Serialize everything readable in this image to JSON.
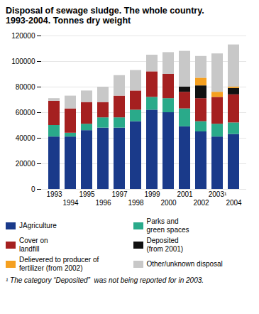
{
  "chart_data": {
    "type": "bar",
    "stacked": true,
    "title": "Disposal of sewage sludge. The whole country.\n1993-2004. Tonnes dry weight",
    "categories": [
      "1993",
      "1994",
      "1995",
      "1996",
      "1997",
      "1998",
      "1999",
      "2000",
      "2001",
      "2002",
      "2003¹",
      "2004"
    ],
    "series": [
      {
        "name": "JAgriculture",
        "color": "#1a3a8a",
        "values": [
          41000,
          41000,
          46000,
          48000,
          48000,
          53000,
          62000,
          60000,
          49000,
          45000,
          41000,
          43000
        ]
      },
      {
        "name": "Parks and\ngreen spaces",
        "color": "#2aaa8a",
        "values": [
          9000,
          3000,
          5000,
          8000,
          8000,
          9000,
          10000,
          11000,
          14000,
          8000,
          10000,
          9000
        ]
      },
      {
        "name": "Cover on\nlandfill",
        "color": "#a52020",
        "values": [
          19000,
          19000,
          17000,
          12000,
          17000,
          15000,
          20000,
          19000,
          13000,
          18000,
          21000,
          22000
        ]
      },
      {
        "name": "Deposited\n(from 2001)",
        "color": "#111111",
        "values": [
          0,
          0,
          0,
          0,
          0,
          0,
          0,
          0,
          4000,
          10000,
          0,
          5000
        ]
      },
      {
        "name": "Delievered to producer of\nfertilizer (from 2002)",
        "color": "#f5a020",
        "values": [
          0,
          0,
          0,
          0,
          0,
          0,
          0,
          0,
          0,
          6000,
          4000,
          1000
        ]
      },
      {
        "name": "Other/unknown disposal",
        "color": "#c8c8c8",
        "values": [
          2000,
          10000,
          9000,
          12000,
          16000,
          16000,
          13000,
          17000,
          28000,
          17000,
          30000,
          33000
        ]
      }
    ],
    "ylim": [
      0,
      120000
    ],
    "yticks": [
      0,
      20000,
      40000,
      60000,
      80000,
      100000,
      120000
    ],
    "grid": true,
    "legend": "bottom",
    "caption": "¹ The category “Deposited”  was not being reported for in 2003."
  }
}
